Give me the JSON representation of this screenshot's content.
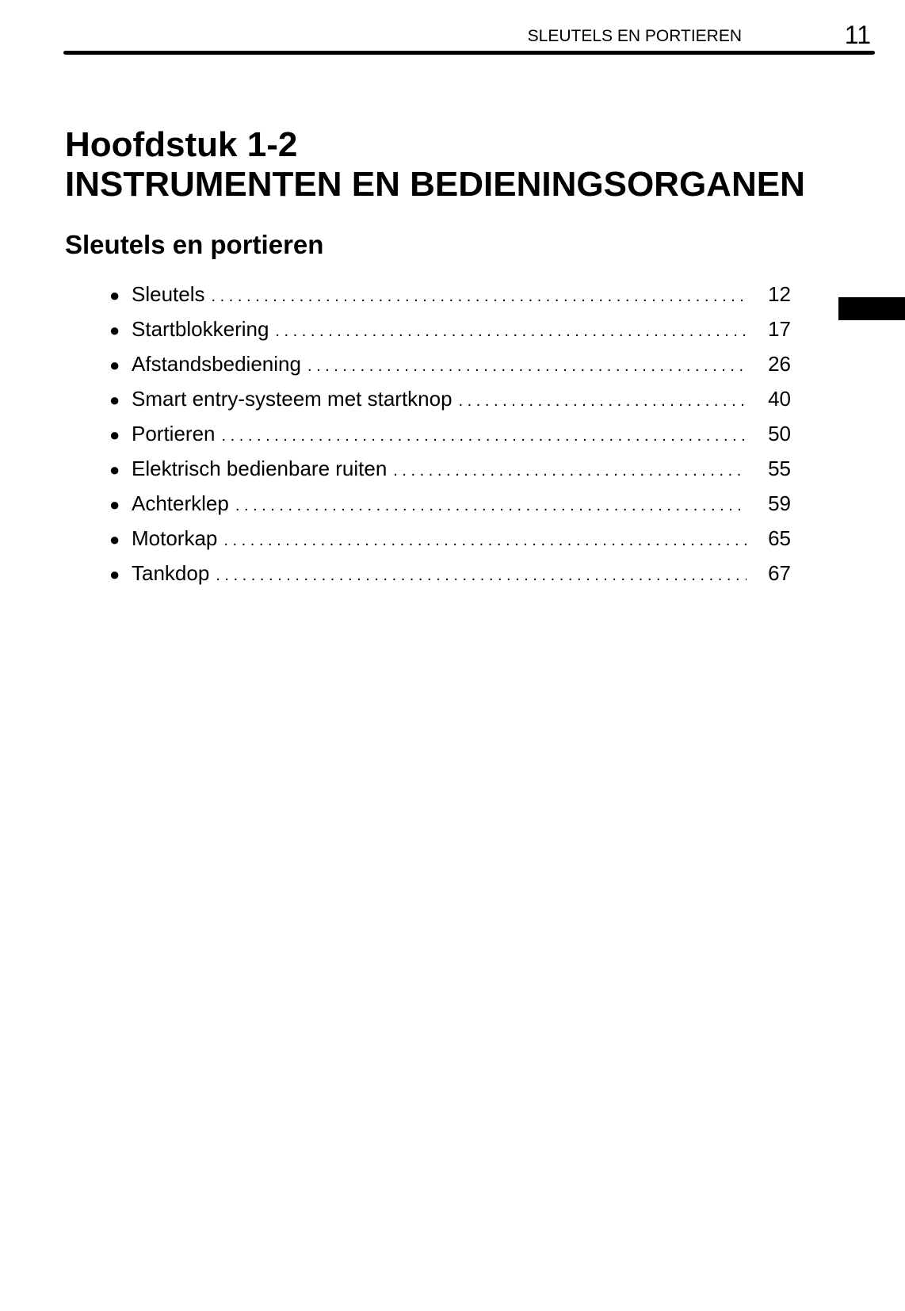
{
  "header": {
    "section": "SLEUTELS EN PORTIEREN",
    "page_number": "11"
  },
  "chapter": {
    "number": "Hoofdstuk 1-2",
    "title": "INSTRUMENTEN EN BEDIENINGSORGANEN"
  },
  "section_title": "Sleutels en portieren",
  "toc": [
    {
      "label": "Sleutels",
      "page": "12"
    },
    {
      "label": "Startblokkering",
      "page": "17"
    },
    {
      "label": "Afstandsbediening",
      "page": "26"
    },
    {
      "label": "Smart entry-systeem met startknop",
      "page": "40"
    },
    {
      "label": "Portieren",
      "page": "50"
    },
    {
      "label": "Elektrisch bedienbare ruiten",
      "page": "55"
    },
    {
      "label": "Achterklep",
      "page": "59"
    },
    {
      "label": "Motorkap",
      "page": "65"
    },
    {
      "label": "Tankdop",
      "page": "67"
    }
  ],
  "bullet_glyph": "●"
}
